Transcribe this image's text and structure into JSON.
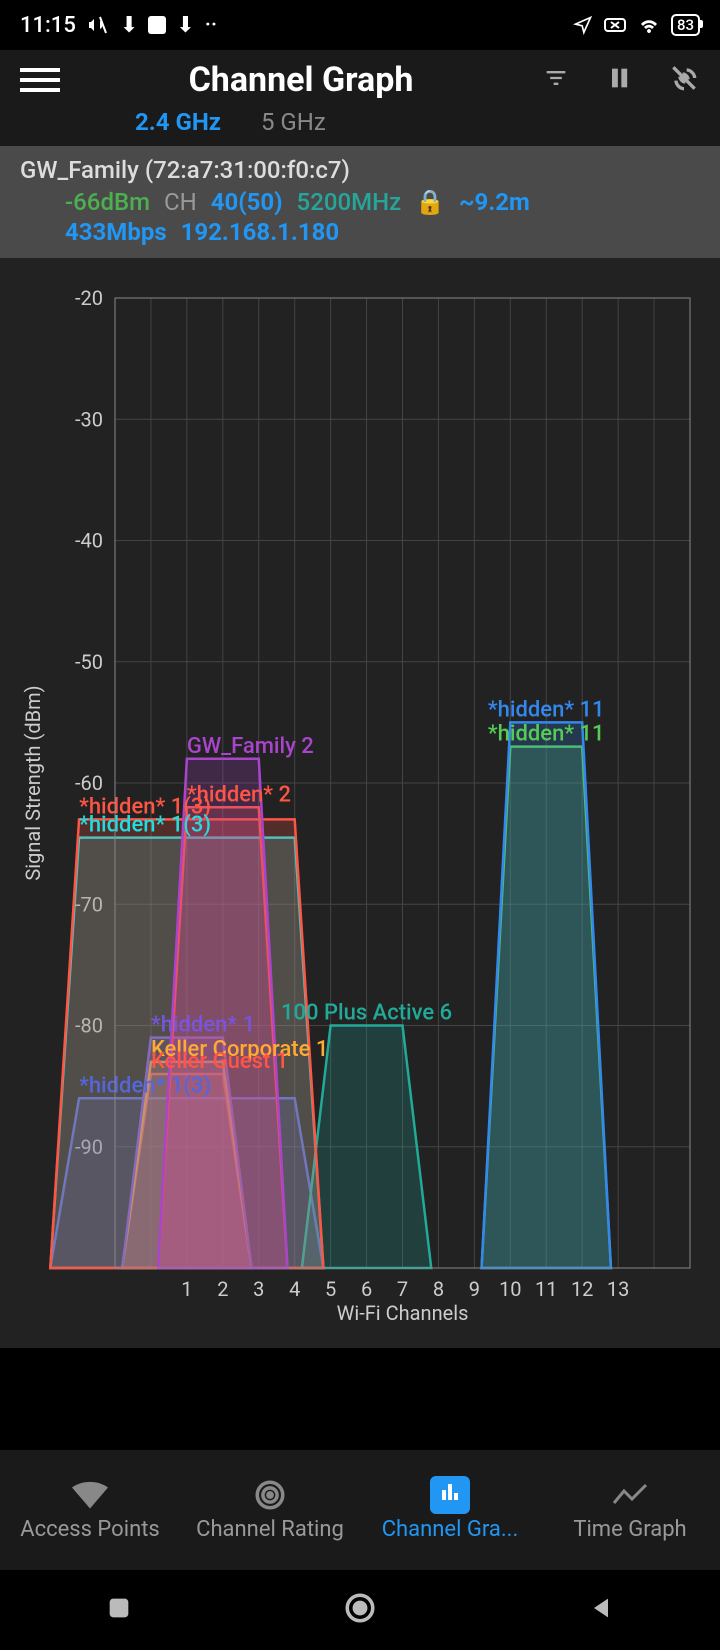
{
  "status": {
    "time": "11:15",
    "battery": "83"
  },
  "app": {
    "title": "Channel Graph",
    "tabs": {
      "a": "2.4 GHz",
      "b": "5 GHz"
    }
  },
  "connection": {
    "ssid_mac": "GW_Family (72:a7:31:00:f0:c7)",
    "signal": "-66dBm",
    "ch_label": "CH",
    "channel": "40(50)",
    "freq": "5200MHz",
    "distance": "~9.2m",
    "speed": "433Mbps",
    "ip": "192.168.1.180"
  },
  "chart": {
    "ylabel": "Signal Strength (dBm)",
    "xlabel": "Wi-Fi Channels",
    "ylim": [
      -100,
      -20
    ],
    "ytick_step": 10,
    "yticks": [
      "-20",
      "-30",
      "-40",
      "-50",
      "-60",
      "-70",
      "-80",
      "-90"
    ],
    "xlim": [
      -1,
      15
    ],
    "xticks": [
      "1",
      "2",
      "3",
      "4",
      "5",
      "6",
      "7",
      "8",
      "9",
      "10",
      "11",
      "12",
      "13"
    ],
    "background_color": "#222222",
    "grid_color": "#444444",
    "axis_color": "#888888",
    "label_color": "#cccccc",
    "label_fontsize": 20,
    "networks": [
      {
        "label": "GW_Family 2",
        "channel": 2,
        "signal": -58,
        "color": "#aa44cc",
        "width": 2
      },
      {
        "label": "*hidden* 2",
        "channel": 2,
        "signal": -62,
        "color": "#ff5544",
        "width": 2
      },
      {
        "label": "*hidden* 1(3)",
        "channel": 1,
        "signal": -63,
        "color": "#ff5544",
        "width": 6
      },
      {
        "label": "*hidden* 1(3)",
        "channel": 1,
        "signal": -64.5,
        "color": "#22dddd",
        "width": 6
      },
      {
        "label": "*hidden* 1",
        "channel": 1,
        "signal": -81,
        "color": "#7755dd",
        "width": 2
      },
      {
        "label": "Keller Corporate 1",
        "channel": 1,
        "signal": -83,
        "color": "#ffaa33",
        "width": 2
      },
      {
        "label": "Keller Guest 1",
        "channel": 1,
        "signal": -84,
        "color": "#ff5544",
        "width": 2
      },
      {
        "label": "*hidden* 1(3)",
        "channel": 1,
        "signal": -86,
        "color": "#5566dd",
        "width": 6
      },
      {
        "label": "100 Plus Active 6",
        "channel": 6,
        "signal": -80,
        "color": "#22aa99",
        "width": 2
      },
      {
        "label": "*hidden* 11",
        "channel": 11,
        "signal": -55,
        "color": "#3388ee",
        "width": 2
      },
      {
        "label": "*hidden* 11",
        "channel": 11,
        "signal": -57,
        "color": "#55cc55",
        "width": 2
      }
    ]
  },
  "nav": {
    "items": [
      "Access Points",
      "Channel Rating",
      "Channel Gra...",
      "Time Graph"
    ],
    "active": 2
  }
}
